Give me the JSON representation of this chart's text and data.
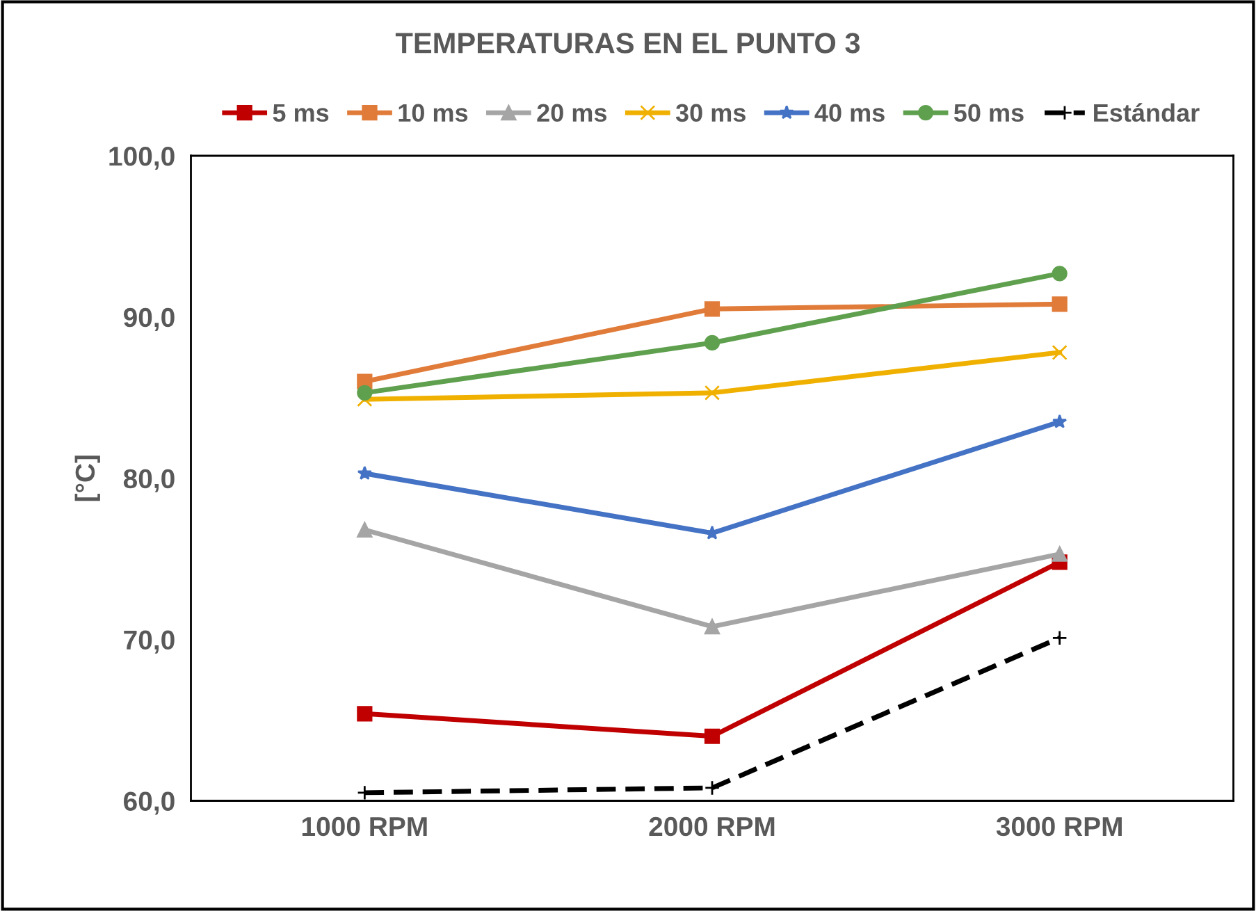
{
  "chart_data": {
    "type": "line",
    "title": "TEMPERATURAS EN EL PUNTO 3",
    "ylabel": "[°C]",
    "categories": [
      "1000 RPM",
      "2000 RPM",
      "3000 RPM"
    ],
    "ylim": [
      60,
      100
    ],
    "yticks": [
      {
        "value": 60,
        "label": "60,0"
      },
      {
        "value": 70,
        "label": "70,0"
      },
      {
        "value": 80,
        "label": "80,0"
      },
      {
        "value": 90,
        "label": "90,0"
      },
      {
        "value": 100,
        "label": "100,0"
      }
    ],
    "grid": false,
    "legend": "top",
    "series": [
      {
        "name": "5 ms",
        "color": "#c00000",
        "marker": "square",
        "values": [
          65.4,
          64.0,
          74.8
        ]
      },
      {
        "name": "10 ms",
        "color": "#e07b39",
        "marker": "square",
        "values": [
          86.0,
          90.5,
          90.8
        ]
      },
      {
        "name": "20 ms",
        "color": "#a5a5a5",
        "marker": "triangle",
        "values": [
          76.8,
          70.8,
          75.3
        ]
      },
      {
        "name": "30 ms",
        "color": "#f0b000",
        "marker": "cross",
        "values": [
          84.9,
          85.3,
          87.8
        ]
      },
      {
        "name": "40 ms",
        "color": "#4472c4",
        "marker": "star",
        "values": [
          80.3,
          76.6,
          83.5
        ]
      },
      {
        "name": "50 ms",
        "color": "#5fa04e",
        "marker": "circle",
        "values": [
          85.3,
          88.4,
          92.7
        ]
      },
      {
        "name": "Estándar",
        "color": "#000000",
        "marker": "plus",
        "line_style": "dashed",
        "values": [
          60.5,
          60.8,
          70.1
        ]
      }
    ]
  }
}
